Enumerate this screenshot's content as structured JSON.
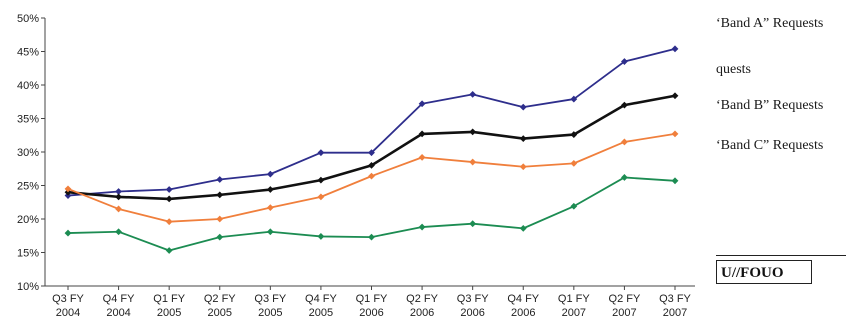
{
  "legend": {
    "band_a": "‘Band A” Requests",
    "fragment": "quests",
    "band_b": "‘Band B” Requests",
    "band_c": "‘Band C” Requests"
  },
  "marking": "U//FOUO",
  "chart_data": {
    "type": "line",
    "categories": [
      [
        "Q3 FY",
        "2004"
      ],
      [
        "Q4 FY",
        "2004"
      ],
      [
        "Q1 FY",
        "2005"
      ],
      [
        "Q2 FY",
        "2005"
      ],
      [
        "Q3 FY",
        "2005"
      ],
      [
        "Q4 FY",
        "2005"
      ],
      [
        "Q1 FY",
        "2006"
      ],
      [
        "Q2 FY",
        "2006"
      ],
      [
        "Q3 FY",
        "2006"
      ],
      [
        "Q4 FY",
        "2006"
      ],
      [
        "Q1 FY",
        "2007"
      ],
      [
        "Q2 FY",
        "2007"
      ],
      [
        "Q3 FY",
        "2007"
      ]
    ],
    "y_ticks": [
      "10%",
      "15%",
      "20%",
      "25%",
      "30%",
      "35%",
      "40%",
      "45%",
      "50%"
    ],
    "ylim": [
      10,
      50
    ],
    "grid": false,
    "series": [
      {
        "name": "‘Band A” Requests",
        "color": "#2e2e8c",
        "values": [
          23.5,
          24.1,
          24.4,
          25.9,
          26.7,
          29.9,
          29.9,
          37.2,
          38.6,
          36.7,
          37.9,
          43.5,
          45.4
        ]
      },
      {
        "name": "",
        "color": "#111111",
        "values": [
          24.0,
          23.3,
          23.0,
          23.6,
          24.4,
          25.8,
          28.0,
          32.7,
          33.0,
          32.0,
          32.6,
          37.0,
          38.4
        ]
      },
      {
        "name": "‘Band B” Requests",
        "color": "#f07f3c",
        "values": [
          24.5,
          21.5,
          19.6,
          20.0,
          21.7,
          23.3,
          26.4,
          29.2,
          28.5,
          27.8,
          28.3,
          31.5,
          32.7
        ]
      },
      {
        "name": "‘Band C” Requests",
        "color": "#1c8c52",
        "values": [
          17.9,
          18.1,
          15.3,
          17.3,
          18.1,
          17.4,
          17.3,
          18.8,
          19.3,
          18.6,
          21.9,
          26.2,
          25.7
        ]
      }
    ]
  }
}
